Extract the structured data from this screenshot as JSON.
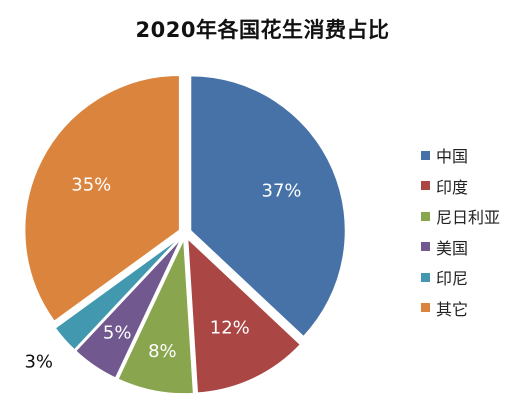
{
  "chart_data": {
    "type": "pie",
    "title": "2020年各国花生消费占比",
    "categories": [
      "中国",
      "印度",
      "尼日利亚",
      "美国",
      "印尼",
      "其它"
    ],
    "values": [
      37,
      12,
      8,
      5,
      3,
      35
    ],
    "labels": [
      "37%",
      "12%",
      "8%",
      "5%",
      "3%",
      "35%"
    ],
    "colors": [
      "#4672A8",
      "#AA4644",
      "#89A54E",
      "#71588F",
      "#4198AF",
      "#DB843D"
    ],
    "legend_position": "right",
    "start": "top, clockwise",
    "exploded": true
  }
}
